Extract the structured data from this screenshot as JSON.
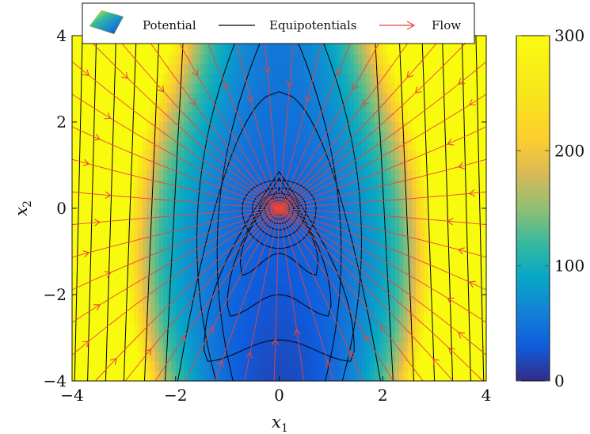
{
  "chart_data": {
    "type": "heatmap",
    "title": "",
    "xlabel": "x",
    "xlabel_sub": "1",
    "ylabel": "x",
    "ylabel_sub": "2",
    "xlim": [
      -4,
      4
    ],
    "ylim": [
      -4,
      4
    ],
    "xticks": [
      -4,
      -2,
      0,
      2,
      4
    ],
    "yticks": [
      -4,
      -2,
      0,
      2,
      4
    ],
    "xtick_labels": [
      "−4",
      "−2",
      "0",
      "2",
      "4"
    ],
    "ytick_labels": [
      "−4",
      "−2",
      "0",
      "2",
      "4"
    ],
    "colorbar": {
      "range": [
        0,
        300
      ],
      "ticks": [
        0,
        100,
        200,
        300
      ],
      "tick_labels": [
        "0",
        "100",
        "200",
        "300"
      ],
      "colormap": "parula"
    },
    "legend": {
      "placement": "top",
      "entries": [
        {
          "label": "Potential",
          "kind": "surface-icon"
        },
        {
          "label": "Equipotentials",
          "kind": "line",
          "color": "#000000"
        },
        {
          "label": "Flow",
          "kind": "arrow",
          "color": "#e8443a"
        }
      ]
    },
    "series": [
      {
        "name": "Potential",
        "kind": "heatmap"
      },
      {
        "name": "Equipotentials",
        "kind": "contour",
        "color": "#000000"
      },
      {
        "name": "Flow",
        "kind": "streamlines",
        "color": "#e8443a"
      }
    ]
  }
}
